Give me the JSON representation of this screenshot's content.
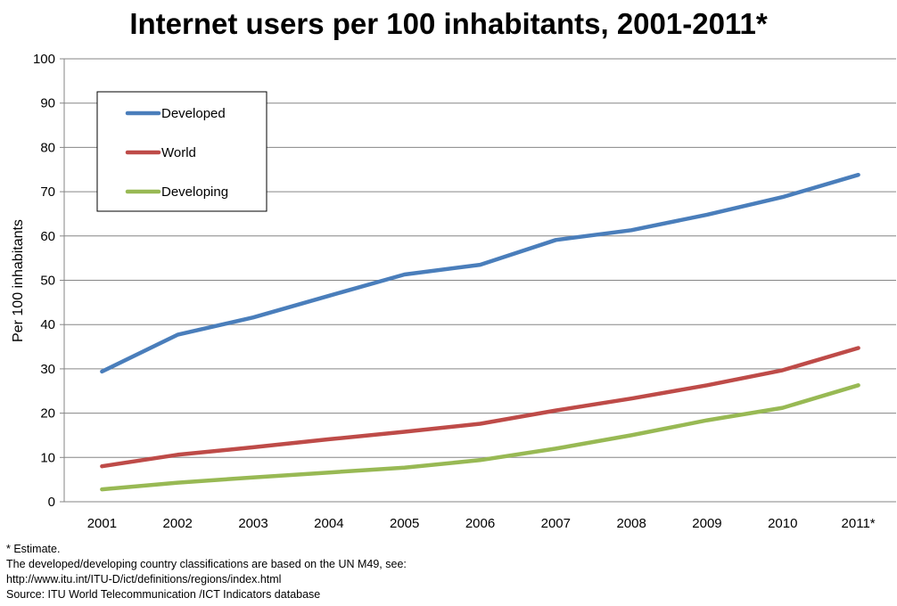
{
  "chart_data": {
    "type": "line",
    "title": "Internet users per 100 inhabitants, 2001-2011*",
    "xlabel": "",
    "ylabel": "Per 100 inhabitants",
    "categories": [
      "2001",
      "2002",
      "2003",
      "2004",
      "2005",
      "2006",
      "2007",
      "2008",
      "2009",
      "2010",
      "2011*"
    ],
    "ylim": [
      0,
      100
    ],
    "yticks": [
      0,
      10,
      20,
      30,
      40,
      50,
      60,
      70,
      80,
      90,
      100
    ],
    "grid": true,
    "legend_position": "top-left",
    "series": [
      {
        "name": "Developed",
        "color": "#4a7ebb",
        "values": [
          29.4,
          37.7,
          41.6,
          46.5,
          51.3,
          53.5,
          59.1,
          61.3,
          64.8,
          68.8,
          73.8
        ]
      },
      {
        "name": "World",
        "color": "#be4b48",
        "values": [
          8.0,
          10.6,
          12.3,
          14.1,
          15.8,
          17.6,
          20.6,
          23.3,
          26.3,
          29.7,
          34.7
        ]
      },
      {
        "name": "Developing",
        "color": "#98b954",
        "values": [
          2.8,
          4.3,
          5.5,
          6.6,
          7.7,
          9.4,
          12.0,
          15.0,
          18.4,
          21.2,
          26.3
        ]
      }
    ]
  },
  "footnotes": [
    "* Estimate.",
    "The developed/developing country classifications are based on the UN M49, see:",
    "http://www.itu.int/ITU-D/ict/definitions/regions/index.html",
    "Source:  ITU World Telecommunication /ICT Indicators database"
  ]
}
